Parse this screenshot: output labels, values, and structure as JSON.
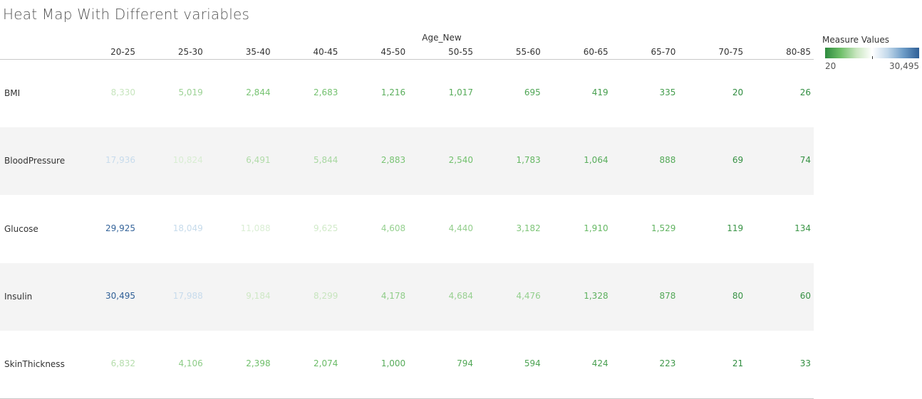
{
  "title": "Heat Map With Different variables",
  "legend": {
    "title": "Measure Values",
    "min_label": "20",
    "max_label": "30,495",
    "colors": [
      "#2e8b3e",
      "#6fbf6a",
      "#c9e6c0",
      "#ffffff",
      "#c2d8ea",
      "#6d9cc7",
      "#2f5f96"
    ]
  },
  "chart_data": {
    "type": "heatmap",
    "title": "Heat Map With Different variables",
    "column_title": "Age_New",
    "categories": [
      "20-25",
      "25-30",
      "35-40",
      "40-45",
      "45-50",
      "50-55",
      "55-60",
      "60-65",
      "65-70",
      "70-75",
      "80-85"
    ],
    "rows": [
      {
        "name": "BMI",
        "values": [
          8330,
          5019,
          2844,
          2683,
          1216,
          1017,
          695,
          419,
          335,
          20,
          26
        ],
        "labels": [
          "8,330",
          "5,019",
          "2,844",
          "2,683",
          "1,216",
          "1,017",
          "695",
          "419",
          "335",
          "20",
          "26"
        ]
      },
      {
        "name": "BloodPressure",
        "values": [
          17936,
          10824,
          6491,
          5844,
          2883,
          2540,
          1783,
          1064,
          888,
          69,
          74
        ],
        "labels": [
          "17,936",
          "10,824",
          "6,491",
          "5,844",
          "2,883",
          "2,540",
          "1,783",
          "1,064",
          "888",
          "69",
          "74"
        ]
      },
      {
        "name": "Glucose",
        "values": [
          29925,
          18049,
          11088,
          9625,
          4608,
          4440,
          3182,
          1910,
          1529,
          119,
          134
        ],
        "labels": [
          "29,925",
          "18,049",
          "11,088",
          "9,625",
          "4,608",
          "4,440",
          "3,182",
          "1,910",
          "1,529",
          "119",
          "134"
        ]
      },
      {
        "name": "Insulin",
        "values": [
          30495,
          17988,
          9184,
          8299,
          4178,
          4684,
          4476,
          1328,
          878,
          80,
          60
        ],
        "labels": [
          "30,495",
          "17,988",
          "9,184",
          "8,299",
          "4,178",
          "4,684",
          "4,476",
          "1,328",
          "878",
          "80",
          "60"
        ]
      },
      {
        "name": "SkinThickness",
        "values": [
          6832,
          4106,
          2398,
          2074,
          1000,
          794,
          594,
          424,
          223,
          21,
          33
        ],
        "labels": [
          "6,832",
          "4,106",
          "2,398",
          "2,074",
          "1,000",
          "794",
          "594",
          "424",
          "223",
          "21",
          "33"
        ]
      }
    ],
    "color_range": [
      20,
      30495
    ],
    "legend_title": "Measure Values",
    "legend_placement": "top-right"
  }
}
